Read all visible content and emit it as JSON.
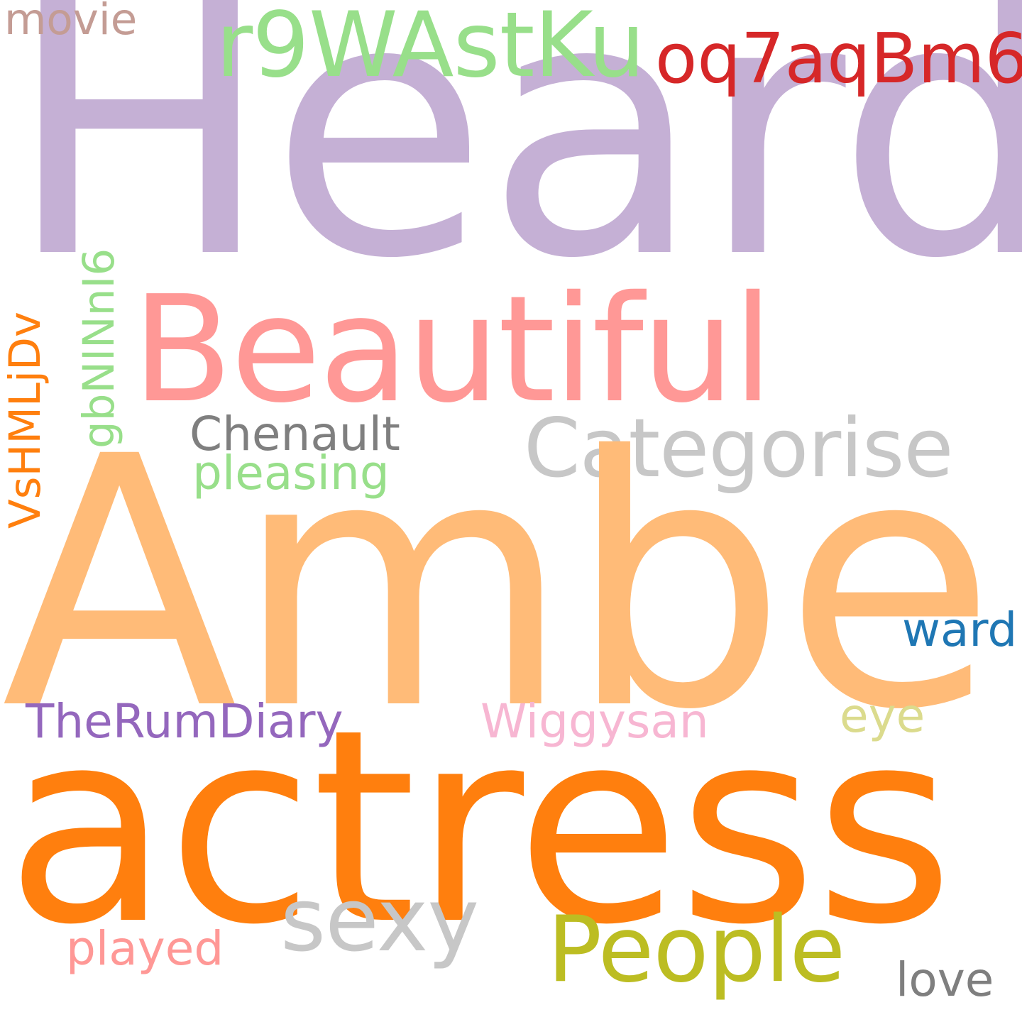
{
  "cloud": {
    "background": "#ffffff",
    "words": {
      "heard": {
        "text": "Heard",
        "color": "#c5b0d5",
        "orientation": "horizontal"
      },
      "amber": {
        "text": "Amber",
        "color": "#ffbb78",
        "orientation": "horizontal"
      },
      "actress": {
        "text": "actress",
        "color": "#ff7f0e",
        "orientation": "horizontal"
      },
      "beautiful": {
        "text": "Beautiful",
        "color": "#ff9896",
        "orientation": "horizontal"
      },
      "r9wastku": {
        "text": "r9WAstKu",
        "color": "#98df8a",
        "orientation": "horizontal"
      },
      "oq7aqbm6": {
        "text": "oq7aqBm6",
        "color": "#d62728",
        "orientation": "horizontal"
      },
      "movie": {
        "text": "movie",
        "color": "#c49c94",
        "orientation": "horizontal"
      },
      "categorise": {
        "text": "Categorise",
        "color": "#c7c7c7",
        "orientation": "horizontal"
      },
      "chenault": {
        "text": "Chenault",
        "color": "#7f7f7f",
        "orientation": "horizontal"
      },
      "pleasing": {
        "text": "pleasing",
        "color": "#98df8a",
        "orientation": "horizontal"
      },
      "ward": {
        "text": "ward",
        "color": "#1f77b4",
        "orientation": "horizontal"
      },
      "therumdiary": {
        "text": "TheRumDiary",
        "color": "#9467bd",
        "orientation": "horizontal"
      },
      "wiggysan": {
        "text": "Wiggysan",
        "color": "#f7b6d2",
        "orientation": "horizontal"
      },
      "eye": {
        "text": "eye",
        "color": "#dbdb8d",
        "orientation": "horizontal"
      },
      "sexy": {
        "text": "sexy",
        "color": "#c7c7c7",
        "orientation": "horizontal"
      },
      "people": {
        "text": "People",
        "color": "#bcbd22",
        "orientation": "horizontal"
      },
      "played": {
        "text": "played",
        "color": "#ff9896",
        "orientation": "horizontal"
      },
      "love": {
        "text": "love",
        "color": "#7f7f7f",
        "orientation": "horizontal"
      },
      "vshmljdv": {
        "text": "VsHMLjDv",
        "color": "#ff7f0e",
        "orientation": "vertical"
      },
      "gbninni6": {
        "text": "gbNINnI6",
        "color": "#98df8a",
        "orientation": "vertical"
      }
    }
  }
}
